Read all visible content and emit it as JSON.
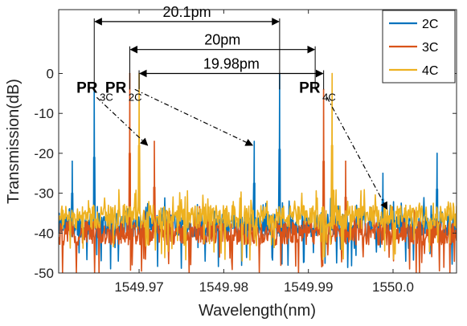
{
  "chart_data": {
    "type": "line",
    "xlabel": "Wavelength(nm)",
    "ylabel": "Transmission(dB)",
    "xlim": [
      1549.9605,
      1550.0075
    ],
    "ylim": [
      -50,
      16
    ],
    "x_ticks": [
      1549.97,
      1549.98,
      1549.99,
      1550.0
    ],
    "x_tick_labels": [
      "1549.97",
      "1549.98",
      "1549.99",
      "1550.0"
    ],
    "y_ticks": [
      0,
      -10,
      -20,
      -30,
      -40,
      -50
    ],
    "y_tick_labels": [
      "0",
      "-10",
      "-20",
      "-30",
      "-40",
      "-50"
    ],
    "legend_position": "top-right",
    "series": [
      {
        "name": "2C",
        "color": "#0072BD",
        "noise_floor": -38,
        "peaks": [
          {
            "x": 1549.9647,
            "y": -4
          },
          {
            "x": 1549.9621,
            "y": -22
          },
          {
            "x": 1549.9836,
            "y": -17
          },
          {
            "x": 1549.9866,
            "y": 0
          },
          {
            "x": 1549.9988,
            "y": -25
          },
          {
            "x": 1550.0052,
            "y": -20
          }
        ]
      },
      {
        "name": "3C",
        "color": "#D95319",
        "noise_floor": -40,
        "peaks": [
          {
            "x": 1549.9689,
            "y": 0
          },
          {
            "x": 1549.9718,
            "y": -17
          },
          {
            "x": 1549.9918,
            "y": -4
          },
          {
            "x": 1549.9944,
            "y": -22
          }
        ]
      },
      {
        "name": "4C",
        "color": "#EDB120",
        "noise_floor": -36,
        "peaks": [
          {
            "x": 1549.97,
            "y": 0
          },
          {
            "x": 1549.9928,
            "y": 0
          },
          {
            "x": 1550.0015,
            "y": -33
          }
        ]
      }
    ],
    "spacing_annotations": [
      {
        "label": "20.1pm",
        "x_start": 1549.9647,
        "x_end": 1549.9866,
        "y": 13
      },
      {
        "label": "20pm",
        "x_start": 1549.9689,
        "x_end": 1549.9908,
        "y": 6
      },
      {
        "label": "19.98pm",
        "x_start": 1549.97,
        "x_end": 1549.9918,
        "y": 0
      }
    ],
    "peak_labels": [
      {
        "main": "PR",
        "sub": "3C",
        "x": 1549.9626,
        "y": -2
      },
      {
        "main": "PR",
        "sub": "2C",
        "x": 1549.966,
        "y": -2
      },
      {
        "main": "PR",
        "sub": "4C",
        "x": 1549.9889,
        "y": -2
      }
    ],
    "shift_arrows": [
      {
        "from": [
          1549.965,
          -6
        ],
        "to": [
          1549.971,
          -18
        ]
      },
      {
        "from": [
          1549.9695,
          -4
        ],
        "to": [
          1549.9834,
          -18
        ]
      },
      {
        "from": [
          1549.9922,
          -6
        ],
        "to": [
          1549.9993,
          -34
        ]
      }
    ]
  }
}
